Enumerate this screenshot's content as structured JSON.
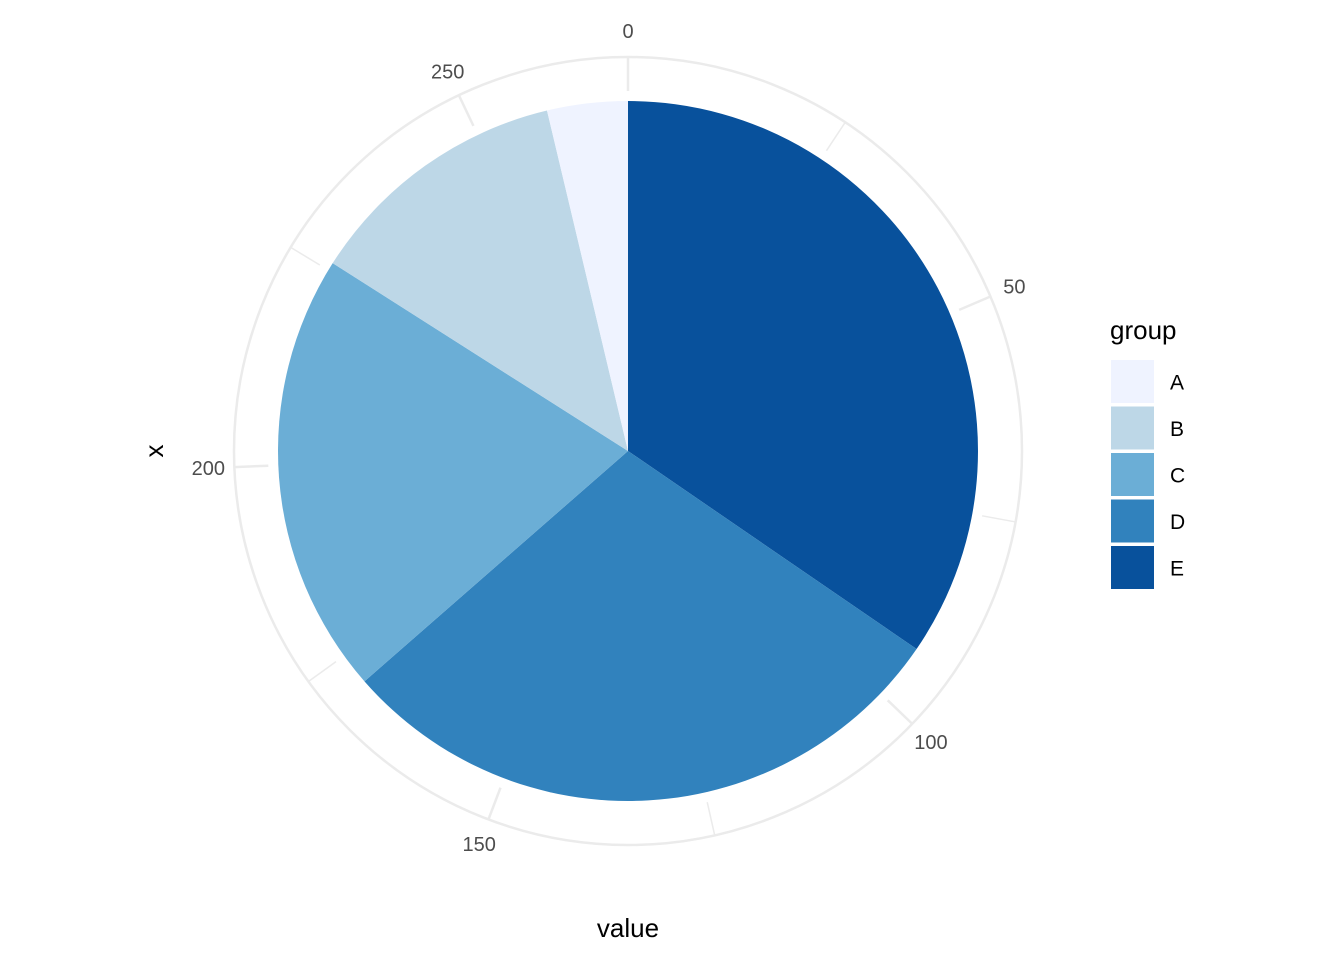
{
  "chart_data": {
    "type": "pie",
    "xlabel": "value",
    "ylabel": "x",
    "legend_title": "group",
    "legend_position": "right",
    "grid": true,
    "theta_range": [
      0,
      269
    ],
    "theta_ticks": [
      0,
      50,
      100,
      150,
      200,
      250
    ],
    "slices": [
      {
        "label": "A",
        "value": 10,
        "color": "#EFF3FF"
      },
      {
        "label": "B",
        "value": 33,
        "color": "#BDD7E7"
      },
      {
        "label": "C",
        "value": 55,
        "color": "#6BAED6"
      },
      {
        "label": "D",
        "value": 78,
        "color": "#3182BD"
      },
      {
        "label": "E",
        "value": 93,
        "color": "#08519C"
      }
    ],
    "stack_order": [
      "E",
      "D",
      "C",
      "B",
      "A"
    ],
    "grid_color": "#EBEBEB"
  }
}
